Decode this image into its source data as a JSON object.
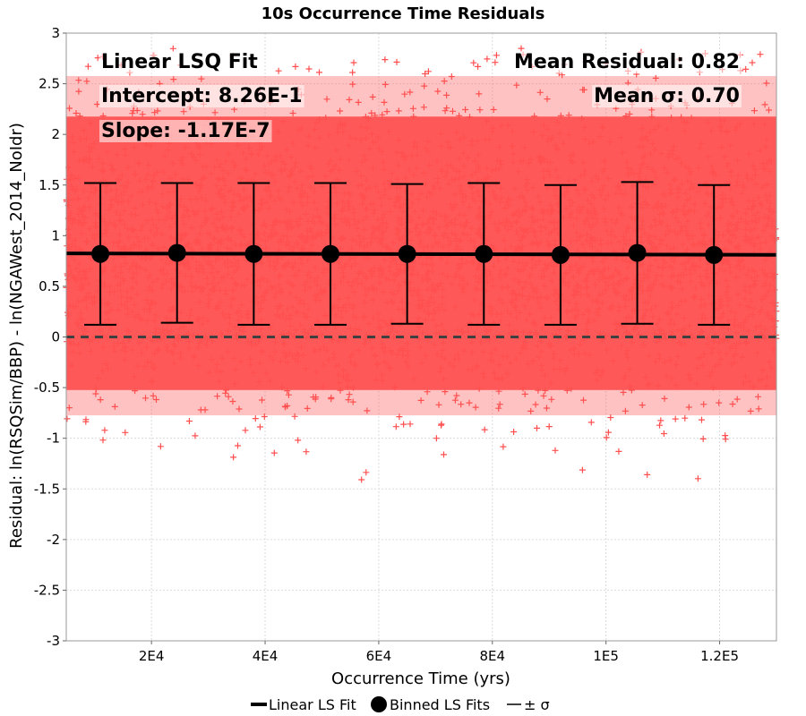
{
  "chart_data": {
    "type": "scatter",
    "title": "10s Occurrence Time Residuals",
    "xlabel": "Occurrence Time (yrs)",
    "ylabel": "Residual: ln(RSQSim/BBP) - ln(NGAWest_2014_NoIdr)",
    "xlim": [
      5000,
      130000
    ],
    "ylim": [
      -3,
      3
    ],
    "x_ticks": [
      {
        "value": 20000,
        "label": "2E4"
      },
      {
        "value": 40000,
        "label": "4E4"
      },
      {
        "value": 60000,
        "label": "6E4"
      },
      {
        "value": 80000,
        "label": "8E4"
      },
      {
        "value": 100000,
        "label": "1E5"
      },
      {
        "value": 120000,
        "label": "1.2E5"
      }
    ],
    "y_ticks": [
      {
        "value": 3,
        "label": "3"
      },
      {
        "value": 2.5,
        "label": "2.5"
      },
      {
        "value": 2,
        "label": "2"
      },
      {
        "value": 1.5,
        "label": "1.5"
      },
      {
        "value": 1,
        "label": "1"
      },
      {
        "value": 0.5,
        "label": "0.5"
      },
      {
        "value": 0,
        "label": "0"
      },
      {
        "value": -0.5,
        "label": "-0.5"
      },
      {
        "value": -1,
        "label": "-1"
      },
      {
        "value": -1.5,
        "label": "-1.5"
      },
      {
        "value": -2,
        "label": "-2"
      },
      {
        "value": -2.5,
        "label": "-2.5"
      },
      {
        "value": -3,
        "label": "-3"
      }
    ],
    "grid": true,
    "scatter_color": "#ff4f4f",
    "scatter_marker": "+",
    "scatter_y_range": [
      -1.45,
      2.85
    ],
    "linear_fit": {
      "name": "Linear LS Fit",
      "intercept": 0.826,
      "slope": -1.17e-07,
      "color": "#000000"
    },
    "binned_fits": {
      "name": "Binned LS Fits",
      "sigma_name": "± σ",
      "x": [
        11000,
        24500,
        38000,
        51500,
        65000,
        78500,
        92000,
        105500,
        119000
      ],
      "y": [
        0.82,
        0.83,
        0.82,
        0.82,
        0.82,
        0.82,
        0.81,
        0.83,
        0.81
      ],
      "sigma": [
        0.7,
        0.69,
        0.7,
        0.7,
        0.69,
        0.7,
        0.69,
        0.7,
        0.69
      ]
    },
    "zero_line": {
      "y": 0,
      "style": "dashed",
      "color": "#404040"
    },
    "annotations": {
      "fit_label": "Linear LSQ Fit",
      "intercept_label": "Intercept: 8.26E-1",
      "slope_label": "Slope: -1.17E-7",
      "mean_residual_label": "Mean Residual: 0.82",
      "mean_sigma_label": "Mean σ: 0.70"
    },
    "legend_position": "bottom-center"
  }
}
